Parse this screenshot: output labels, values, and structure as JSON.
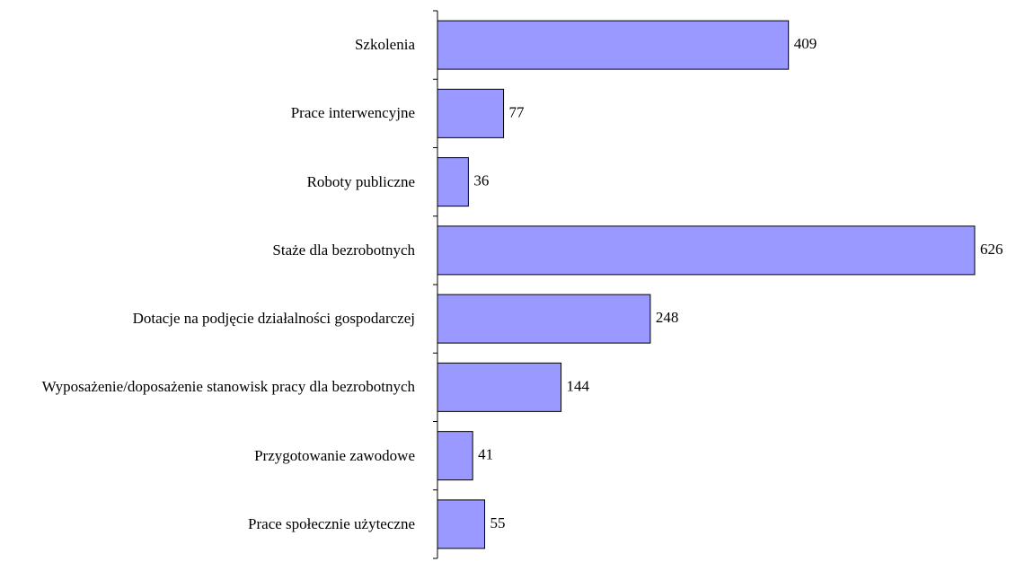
{
  "chart_data": {
    "type": "bar",
    "orientation": "horizontal",
    "color": "#9999ff",
    "categories": [
      "Szkolenia",
      "Prace interwencyjne",
      "Roboty publiczne",
      "Staże dla bezrobotnych",
      "Dotacje na podjęcie działalności gospodarczej",
      "Wyposażenie/doposażenie stanowisk pracy dla bezrobotnych",
      "Przygotowanie zawodowe",
      "Prace społecznie użyteczne"
    ],
    "values": [
      409,
      77,
      36,
      626,
      248,
      144,
      41,
      55
    ]
  }
}
